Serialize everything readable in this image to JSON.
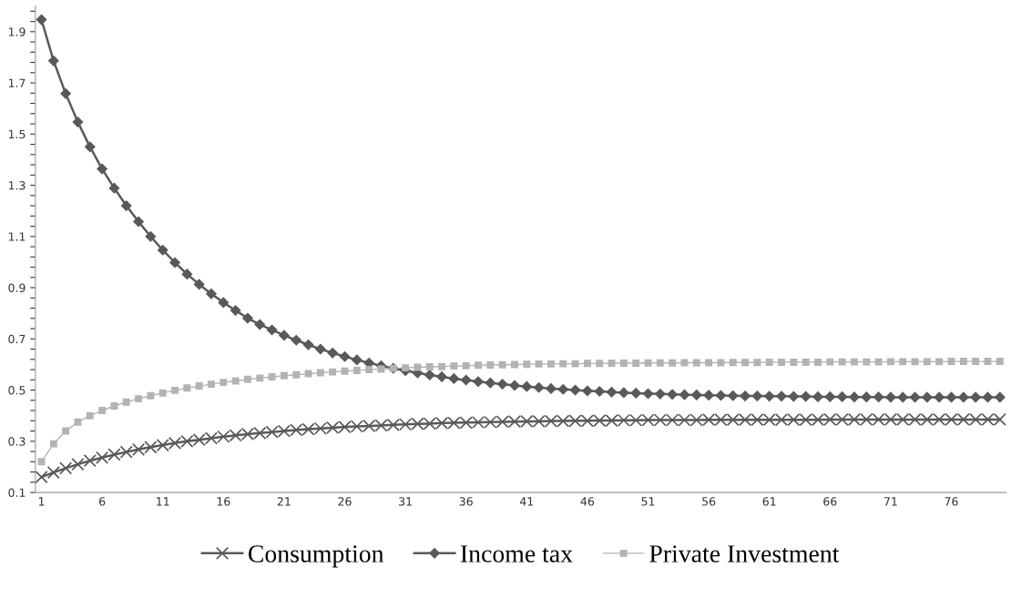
{
  "chart_data": {
    "type": "line",
    "categories": [
      "1",
      null,
      null,
      null,
      null,
      "6",
      null,
      null,
      null,
      null,
      "11",
      null,
      null,
      null,
      null,
      "16",
      null,
      null,
      null,
      null,
      "21",
      null,
      null,
      null,
      null,
      "26",
      null,
      null,
      null,
      null,
      "31",
      null,
      null,
      null,
      null,
      "36",
      null,
      null,
      null,
      null,
      "41",
      null,
      null,
      null,
      null,
      "46",
      null,
      null,
      null,
      null,
      "51",
      null,
      null,
      null,
      null,
      "56",
      null,
      null,
      null,
      null,
      "61",
      null,
      null,
      null,
      null,
      "66",
      null,
      null,
      null,
      null,
      "71",
      null,
      null,
      null,
      null,
      "76",
      null,
      null,
      null,
      null
    ],
    "series": [
      {
        "name": "Consumption",
        "color": "#595959",
        "marker": "cross",
        "values": [
          0.16,
          0.178,
          0.195,
          0.21,
          0.224,
          0.236,
          0.248,
          0.258,
          0.268,
          0.277,
          0.285,
          0.293,
          0.3,
          0.306,
          0.312,
          0.318,
          0.323,
          0.328,
          0.332,
          0.336,
          0.34,
          0.344,
          0.347,
          0.35,
          0.353,
          0.356,
          0.358,
          0.36,
          0.362,
          0.364,
          0.366,
          0.368,
          0.369,
          0.371,
          0.372,
          0.373,
          0.374,
          0.375,
          0.376,
          0.377,
          0.378,
          0.378,
          0.379,
          0.379,
          0.38,
          0.38,
          0.381,
          0.381,
          0.382,
          0.382,
          0.383,
          0.383,
          0.383,
          0.383,
          0.383,
          0.384,
          0.384,
          0.384,
          0.384,
          0.384,
          0.384,
          0.384,
          0.384,
          0.384,
          0.384,
          0.385,
          0.385,
          0.385,
          0.385,
          0.385,
          0.385,
          0.385,
          0.385,
          0.385,
          0.385,
          0.385,
          0.385,
          0.385,
          0.385,
          0.385
        ]
      },
      {
        "name": "Income tax",
        "color": "#595959",
        "marker": "diamond",
        "values": [
          1.947,
          1.786,
          1.658,
          1.547,
          1.45,
          1.364,
          1.289,
          1.22,
          1.158,
          1.1,
          1.047,
          0.998,
          0.953,
          0.913,
          0.876,
          0.842,
          0.811,
          0.781,
          0.756,
          0.735,
          0.714,
          0.695,
          0.677,
          0.66,
          0.645,
          0.631,
          0.618,
          0.606,
          0.595,
          0.585,
          0.576,
          0.567,
          0.559,
          0.552,
          0.545,
          0.539,
          0.533,
          0.528,
          0.523,
          0.518,
          0.514,
          0.51,
          0.506,
          0.503,
          0.5,
          0.497,
          0.495,
          0.492,
          0.49,
          0.488,
          0.486,
          0.485,
          0.483,
          0.482,
          0.481,
          0.48,
          0.479,
          0.478,
          0.477,
          0.477,
          0.476,
          0.476,
          0.475,
          0.475,
          0.474,
          0.474,
          0.474,
          0.473,
          0.473,
          0.473,
          0.472,
          0.472,
          0.472,
          0.472,
          0.472,
          0.472,
          0.472,
          0.472,
          0.472,
          0.472
        ]
      },
      {
        "name": "Private Investment",
        "color": "#b3b3b3",
        "marker": "square",
        "values": [
          0.22,
          0.29,
          0.34,
          0.375,
          0.4,
          0.42,
          0.438,
          0.453,
          0.466,
          0.478,
          0.489,
          0.499,
          0.508,
          0.516,
          0.523,
          0.53,
          0.536,
          0.542,
          0.547,
          0.552,
          0.556,
          0.56,
          0.564,
          0.568,
          0.571,
          0.574,
          0.577,
          0.58,
          0.582,
          0.585,
          0.587,
          0.589,
          0.591,
          0.592,
          0.594,
          0.595,
          0.597,
          0.598,
          0.599,
          0.6,
          0.601,
          0.602,
          0.602,
          0.603,
          0.603,
          0.604,
          0.604,
          0.605,
          0.605,
          0.605,
          0.606,
          0.606,
          0.606,
          0.607,
          0.607,
          0.607,
          0.607,
          0.608,
          0.608,
          0.608,
          0.609,
          0.609,
          0.609,
          0.609,
          0.609,
          0.61,
          0.61,
          0.61,
          0.61,
          0.61,
          0.611,
          0.611,
          0.611,
          0.611,
          0.611,
          0.612,
          0.612,
          0.612,
          0.612,
          0.612
        ]
      }
    ],
    "ylim": [
      0.1,
      2.0
    ],
    "yticks": [
      {
        "value": 0.1,
        "label": "0.1"
      },
      {
        "value": 0.14,
        "label": null
      },
      {
        "value": 0.18,
        "label": null
      },
      {
        "value": 0.22,
        "label": null
      },
      {
        "value": 0.26,
        "label": null
      },
      {
        "value": 0.3,
        "label": "0.3"
      },
      {
        "value": 0.34,
        "label": null
      },
      {
        "value": 0.38,
        "label": null
      },
      {
        "value": 0.42,
        "label": null
      },
      {
        "value": 0.46,
        "label": null
      },
      {
        "value": 0.5,
        "label": "0.5"
      },
      {
        "value": 0.54,
        "label": null
      },
      {
        "value": 0.58,
        "label": null
      },
      {
        "value": 0.62,
        "label": null
      },
      {
        "value": 0.66,
        "label": null
      },
      {
        "value": 0.7,
        "label": "0.7"
      },
      {
        "value": 0.74,
        "label": null
      },
      {
        "value": 0.78,
        "label": null
      },
      {
        "value": 0.82,
        "label": null
      },
      {
        "value": 0.86,
        "label": null
      },
      {
        "value": 0.9,
        "label": "0.9"
      },
      {
        "value": 0.94,
        "label": null
      },
      {
        "value": 0.98,
        "label": null
      },
      {
        "value": 1.02,
        "label": null
      },
      {
        "value": 1.06,
        "label": null
      },
      {
        "value": 1.1,
        "label": "1.1"
      },
      {
        "value": 1.14,
        "label": null
      },
      {
        "value": 1.18,
        "label": null
      },
      {
        "value": 1.22,
        "label": null
      },
      {
        "value": 1.26,
        "label": null
      },
      {
        "value": 1.3,
        "label": "1.3"
      },
      {
        "value": 1.34,
        "label": null
      },
      {
        "value": 1.38,
        "label": null
      },
      {
        "value": 1.42,
        "label": null
      },
      {
        "value": 1.46,
        "label": null
      },
      {
        "value": 1.5,
        "label": "1.5"
      },
      {
        "value": 1.54,
        "label": null
      },
      {
        "value": 1.58,
        "label": null
      },
      {
        "value": 1.62,
        "label": null
      },
      {
        "value": 1.66,
        "label": null
      },
      {
        "value": 1.7,
        "label": "1.7"
      },
      {
        "value": 1.74,
        "label": null
      },
      {
        "value": 1.78,
        "label": null
      },
      {
        "value": 1.82,
        "label": null
      },
      {
        "value": 1.86,
        "label": null
      },
      {
        "value": 1.9,
        "label": "1.9"
      },
      {
        "value": 1.94,
        "label": null
      },
      {
        "value": 1.98,
        "label": null
      }
    ],
    "grid": false,
    "legend": "bottom",
    "line_style": "solid"
  }
}
